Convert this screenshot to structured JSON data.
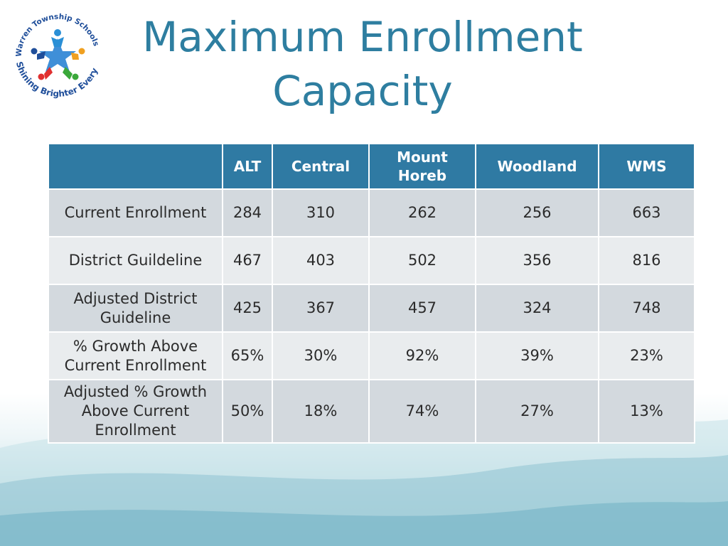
{
  "logo": {
    "arc_text_top": "Warren Township Schools",
    "arc_text_bottom": "Shining Brighter Every Day"
  },
  "title": {
    "line1": "Maximum Enrollment",
    "line2": "Capacity"
  },
  "table": {
    "columns": [
      "",
      "ALT",
      "Central",
      "Mount Horeb",
      "Woodland",
      "WMS"
    ],
    "rows": [
      {
        "label": "Current Enrollment",
        "values": [
          "284",
          "310",
          "262",
          "256",
          "663"
        ]
      },
      {
        "label": "District Guildeline",
        "values": [
          "467",
          "403",
          "502",
          "356",
          "816"
        ]
      },
      {
        "label": "Adjusted District Guideline",
        "values": [
          "425",
          "367",
          "457",
          "324",
          "748"
        ]
      },
      {
        "label": "% Growth Above Current Enrollment",
        "values": [
          "65%",
          "30%",
          "92%",
          "39%",
          "23%"
        ]
      },
      {
        "label": "Adjusted % Growth Above Current Enrollment",
        "values": [
          "50%",
          "18%",
          "74%",
          "27%",
          "13%"
        ]
      }
    ]
  },
  "colors": {
    "title": "#2e7ea0",
    "header_bg": "#2f7aa3",
    "row_dark": "#d3d9de",
    "row_light": "#e9ecee"
  }
}
